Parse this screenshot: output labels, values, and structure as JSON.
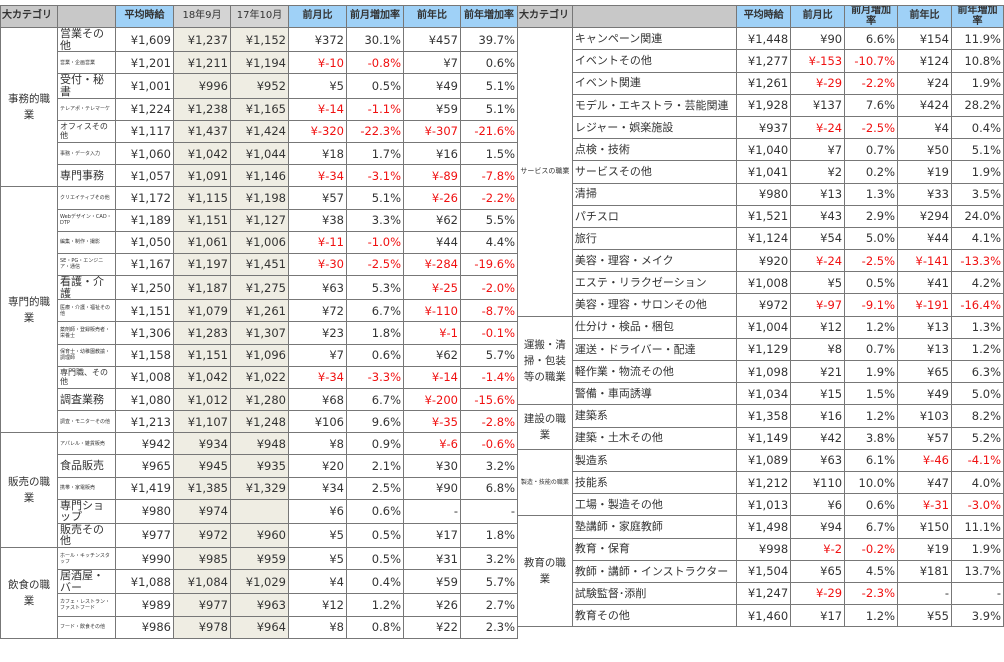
{
  "colors": {
    "header_gray": "#c8c8c8",
    "header_blue": "#9fd1f7",
    "history_bg": "#efede3",
    "negative": "#f01010"
  },
  "left": {
    "headers": [
      "大カテゴリ",
      "",
      "平均時給",
      "18年9月",
      "17年10月",
      "前月比",
      "前月増加率",
      "前年比",
      "前年増加率"
    ],
    "groups": [
      {
        "category": "事務的職業",
        "rows": [
          [
            "営業その他",
            "¥1,609",
            "¥1,237",
            "¥1,152",
            "¥372",
            "30.1%",
            "¥457",
            "39.7%"
          ],
          [
            "営業・企画営業",
            "¥1,201",
            "¥1,211",
            "¥1,194",
            "¥-10",
            "-0.8%",
            "¥7",
            "0.6%"
          ],
          [
            "受付・秘書",
            "¥1,001",
            "¥996",
            "¥952",
            "¥5",
            "0.5%",
            "¥49",
            "5.1%"
          ],
          [
            "テレアポ・テレマーケ",
            "¥1,224",
            "¥1,238",
            "¥1,165",
            "¥-14",
            "-1.1%",
            "¥59",
            "5.1%"
          ],
          [
            "オフィスその他",
            "¥1,117",
            "¥1,437",
            "¥1,424",
            "¥-320",
            "-22.3%",
            "¥-307",
            "-21.6%"
          ],
          [
            "事務・データ入力",
            "¥1,060",
            "¥1,042",
            "¥1,044",
            "¥18",
            "1.7%",
            "¥16",
            "1.5%"
          ],
          [
            "専門事務",
            "¥1,057",
            "¥1,091",
            "¥1,146",
            "¥-34",
            "-3.1%",
            "¥-89",
            "-7.8%"
          ]
        ]
      },
      {
        "category": "専門的職業",
        "rows": [
          [
            "クリエイティブその他",
            "¥1,172",
            "¥1,115",
            "¥1,198",
            "¥57",
            "5.1%",
            "¥-26",
            "-2.2%"
          ],
          [
            "Webデザイン・CAD・DTP",
            "¥1,189",
            "¥1,151",
            "¥1,127",
            "¥38",
            "3.3%",
            "¥62",
            "5.5%"
          ],
          [
            "編集・制作・撮影",
            "¥1,050",
            "¥1,061",
            "¥1,006",
            "¥-11",
            "-1.0%",
            "¥44",
            "4.4%"
          ],
          [
            "SE・PG・エンジニア・通信",
            "¥1,167",
            "¥1,197",
            "¥1,451",
            "¥-30",
            "-2.5%",
            "¥-284",
            "-19.6%"
          ],
          [
            "看護・介護",
            "¥1,250",
            "¥1,187",
            "¥1,275",
            "¥63",
            "5.3%",
            "¥-25",
            "-2.0%"
          ],
          [
            "医療・介護・福祉その他",
            "¥1,151",
            "¥1,079",
            "¥1,261",
            "¥72",
            "6.7%",
            "¥-110",
            "-8.7%"
          ],
          [
            "薬剤師・登録販売者・栄養士",
            "¥1,306",
            "¥1,283",
            "¥1,307",
            "¥23",
            "1.8%",
            "¥-1",
            "-0.1%"
          ],
          [
            "保育士・幼稚園教諭・調理師",
            "¥1,158",
            "¥1,151",
            "¥1,096",
            "¥7",
            "0.6%",
            "¥62",
            "5.7%"
          ],
          [
            "専門職、その他",
            "¥1,008",
            "¥1,042",
            "¥1,022",
            "¥-34",
            "-3.3%",
            "¥-14",
            "-1.4%"
          ],
          [
            "調査業務",
            "¥1,080",
            "¥1,012",
            "¥1,280",
            "¥68",
            "6.7%",
            "¥-200",
            "-15.6%"
          ],
          [
            "調査・モニターその他",
            "¥1,213",
            "¥1,107",
            "¥1,248",
            "¥106",
            "9.6%",
            "¥-35",
            "-2.8%"
          ]
        ]
      },
      {
        "category": "販売の職業",
        "rows": [
          [
            "アパレル・雑貨販売",
            "¥942",
            "¥934",
            "¥948",
            "¥8",
            "0.9%",
            "¥-6",
            "-0.6%"
          ],
          [
            "食品販売",
            "¥965",
            "¥945",
            "¥935",
            "¥20",
            "2.1%",
            "¥30",
            "3.2%"
          ],
          [
            "携帯・家電販売",
            "¥1,419",
            "¥1,385",
            "¥1,329",
            "¥34",
            "2.5%",
            "¥90",
            "6.8%"
          ],
          [
            "専門ショップ",
            "¥980",
            "¥974",
            "",
            "¥6",
            "0.6%",
            "-",
            "-"
          ],
          [
            "販売その他",
            "¥977",
            "¥972",
            "¥960",
            "¥5",
            "0.5%",
            "¥17",
            "1.8%"
          ]
        ]
      },
      {
        "category": "飲食の職業",
        "rows": [
          [
            "ホール・キッチンスタッフ",
            "¥990",
            "¥985",
            "¥959",
            "¥5",
            "0.5%",
            "¥31",
            "3.2%"
          ],
          [
            "居酒屋・バー",
            "¥1,088",
            "¥1,084",
            "¥1,029",
            "¥4",
            "0.4%",
            "¥59",
            "5.7%"
          ],
          [
            "カフェ・レストラン・ファストフード",
            "¥989",
            "¥977",
            "¥963",
            "¥12",
            "1.2%",
            "¥26",
            "2.7%"
          ],
          [
            "フード・飲食その他",
            "¥986",
            "¥978",
            "¥964",
            "¥8",
            "0.8%",
            "¥22",
            "2.3%"
          ]
        ]
      }
    ]
  },
  "right": {
    "headers": [
      "大カテゴリ",
      "",
      "平均時給",
      "前月比",
      "前月増加率",
      "前年比",
      "前年増加率"
    ],
    "groups": [
      {
        "category": "サービスの職業",
        "rows": [
          [
            "キャンペーン関連",
            "¥1,448",
            "¥90",
            "6.6%",
            "¥154",
            "11.9%"
          ],
          [
            "イベントその他",
            "¥1,277",
            "¥-153",
            "-10.7%",
            "¥124",
            "10.8%"
          ],
          [
            "イベント関連",
            "¥1,261",
            "¥-29",
            "-2.2%",
            "¥24",
            "1.9%"
          ],
          [
            "モデル・エキストラ・芸能関連",
            "¥1,928",
            "¥137",
            "7.6%",
            "¥424",
            "28.2%"
          ],
          [
            "レジャー・娯楽施設",
            "¥937",
            "¥-24",
            "-2.5%",
            "¥4",
            "0.4%"
          ],
          [
            "点検・技術",
            "¥1,040",
            "¥7",
            "0.7%",
            "¥50",
            "5.1%"
          ],
          [
            "サービスその他",
            "¥1,041",
            "¥2",
            "0.2%",
            "¥19",
            "1.9%"
          ],
          [
            "清掃",
            "¥980",
            "¥13",
            "1.3%",
            "¥33",
            "3.5%"
          ],
          [
            "パチスロ",
            "¥1,521",
            "¥43",
            "2.9%",
            "¥294",
            "24.0%"
          ],
          [
            "旅行",
            "¥1,124",
            "¥54",
            "5.0%",
            "¥44",
            "4.1%"
          ],
          [
            "美容・理容・メイク",
            "¥920",
            "¥-24",
            "-2.5%",
            "¥-141",
            "-13.3%"
          ],
          [
            "エステ・リラクゼーション",
            "¥1,008",
            "¥5",
            "0.5%",
            "¥41",
            "4.2%"
          ],
          [
            "美容・理容・サロンその他",
            "¥972",
            "¥-97",
            "-9.1%",
            "¥-191",
            "-16.4%"
          ]
        ]
      },
      {
        "category": "運搬・清掃・包装等の職業",
        "rows": [
          [
            "仕分け・検品・梱包",
            "¥1,004",
            "¥12",
            "1.2%",
            "¥13",
            "1.3%"
          ],
          [
            "運送・ドライバー・配達",
            "¥1,129",
            "¥8",
            "0.7%",
            "¥13",
            "1.2%"
          ],
          [
            "軽作業・物流その他",
            "¥1,098",
            "¥21",
            "1.9%",
            "¥65",
            "6.3%"
          ],
          [
            "警備・車両誘導",
            "¥1,034",
            "¥15",
            "1.5%",
            "¥49",
            "5.0%"
          ]
        ]
      },
      {
        "category": "建設の職業",
        "rows": [
          [
            "建築系",
            "¥1,358",
            "¥16",
            "1.2%",
            "¥103",
            "8.2%"
          ],
          [
            "建築・土木その他",
            "¥1,149",
            "¥42",
            "3.8%",
            "¥57",
            "5.2%"
          ]
        ]
      },
      {
        "category": "製造・技能の職業",
        "rows": [
          [
            "製造系",
            "¥1,089",
            "¥63",
            "6.1%",
            "¥-46",
            "-4.1%"
          ],
          [
            "技能系",
            "¥1,212",
            "¥110",
            "10.0%",
            "¥47",
            "4.0%"
          ],
          [
            "工場・製造その他",
            "¥1,013",
            "¥6",
            "0.6%",
            "¥-31",
            "-3.0%"
          ]
        ]
      },
      {
        "category": "教育の職業",
        "rows": [
          [
            "塾講師・家庭教師",
            "¥1,498",
            "¥94",
            "6.7%",
            "¥150",
            "11.1%"
          ],
          [
            "教育・保育",
            "¥998",
            "¥-2",
            "-0.2%",
            "¥19",
            "1.9%"
          ],
          [
            "教師・講師・インストラクター",
            "¥1,504",
            "¥65",
            "4.5%",
            "¥181",
            "13.7%"
          ],
          [
            "試験監督･添削",
            "¥1,247",
            "¥-29",
            "-2.3%",
            "-",
            "-"
          ],
          [
            "教育その他",
            "¥1,460",
            "¥17",
            "1.2%",
            "¥55",
            "3.9%"
          ]
        ]
      }
    ]
  }
}
